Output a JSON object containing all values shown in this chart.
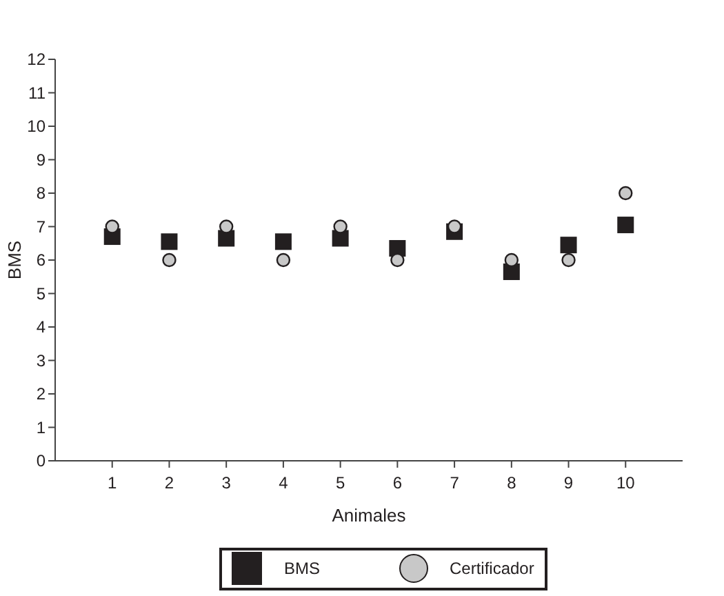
{
  "chart_data": {
    "type": "scatter",
    "xlabel": "Animales",
    "ylabel": "BMS",
    "x": [
      1,
      2,
      3,
      4,
      5,
      6,
      7,
      8,
      9,
      10
    ],
    "xlim": [
      0,
      11
    ],
    "xticks": [
      1,
      2,
      3,
      4,
      5,
      6,
      7,
      8,
      9,
      10
    ],
    "ylim": [
      0,
      12
    ],
    "yticks": [
      0,
      1,
      2,
      3,
      4,
      5,
      6,
      7,
      8,
      9,
      10,
      11,
      12
    ],
    "grid": false,
    "legend": "bottom",
    "series": [
      {
        "name": "BMS",
        "color": "#231f20",
        "marker": "square",
        "values": [
          6.7,
          6.55,
          6.65,
          6.55,
          6.65,
          6.35,
          6.85,
          5.65,
          6.45,
          7.05
        ]
      },
      {
        "name": "Certificador",
        "color": "#c8c8c8",
        "marker": "circle",
        "values": [
          7,
          6,
          7,
          6,
          7,
          6,
          7,
          6,
          6,
          8
        ]
      }
    ]
  }
}
